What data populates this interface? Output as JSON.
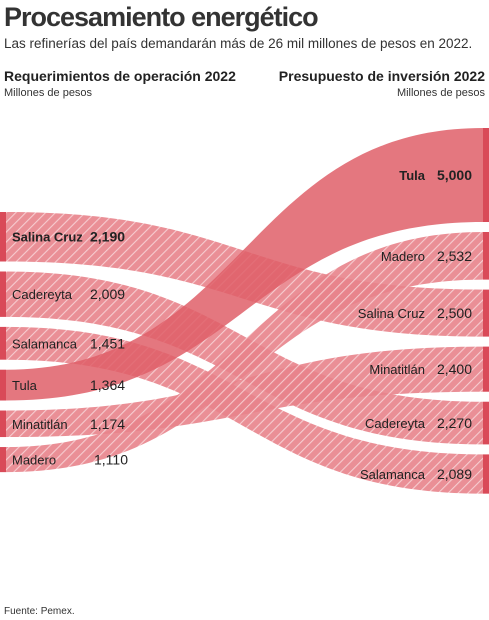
{
  "title": "Procesamiento energético",
  "subtitle": "Las refinerías del país demandarán más de 26 mil millones de pesos en 2022.",
  "left_header": "Requerimientos de operación 2022",
  "left_unit": "Millones de pesos",
  "right_header": "Presupuesto de inversión 2022",
  "right_unit": "Millones de pesos",
  "source": "Fuente: Pemex.",
  "colors": {
    "bar": "#d94a58",
    "flow": "#e8838b",
    "flow_dark": "#df5f69",
    "hatch": "#ffffff"
  },
  "chart_data": {
    "type": "sankey",
    "left": [
      {
        "name": "Salina Cruz",
        "label": "2,190",
        "value": 2190,
        "bold": true
      },
      {
        "name": "Cadereyta",
        "label": "2,009",
        "value": 2009
      },
      {
        "name": "Salamanca",
        "label": "1,451",
        "value": 1451
      },
      {
        "name": "Tula",
        "label": "1,364",
        "value": 1364
      },
      {
        "name": "Minatitlán",
        "label": "1,174",
        "value": 1174
      },
      {
        "name": "Madero",
        "label": "1,110",
        "value": 1110
      }
    ],
    "right": [
      {
        "name": "Tula",
        "label": "5,000",
        "value": 5000,
        "bold": true
      },
      {
        "name": "Madero",
        "label": "2,532",
        "value": 2532
      },
      {
        "name": "Salina Cruz",
        "label": "2,500",
        "value": 2500
      },
      {
        "name": "Minatitlán",
        "label": "2,400",
        "value": 2400
      },
      {
        "name": "Cadereyta",
        "label": "2,270",
        "value": 2270
      },
      {
        "name": "Salamanca",
        "label": "2,089",
        "value": 2089
      }
    ]
  }
}
